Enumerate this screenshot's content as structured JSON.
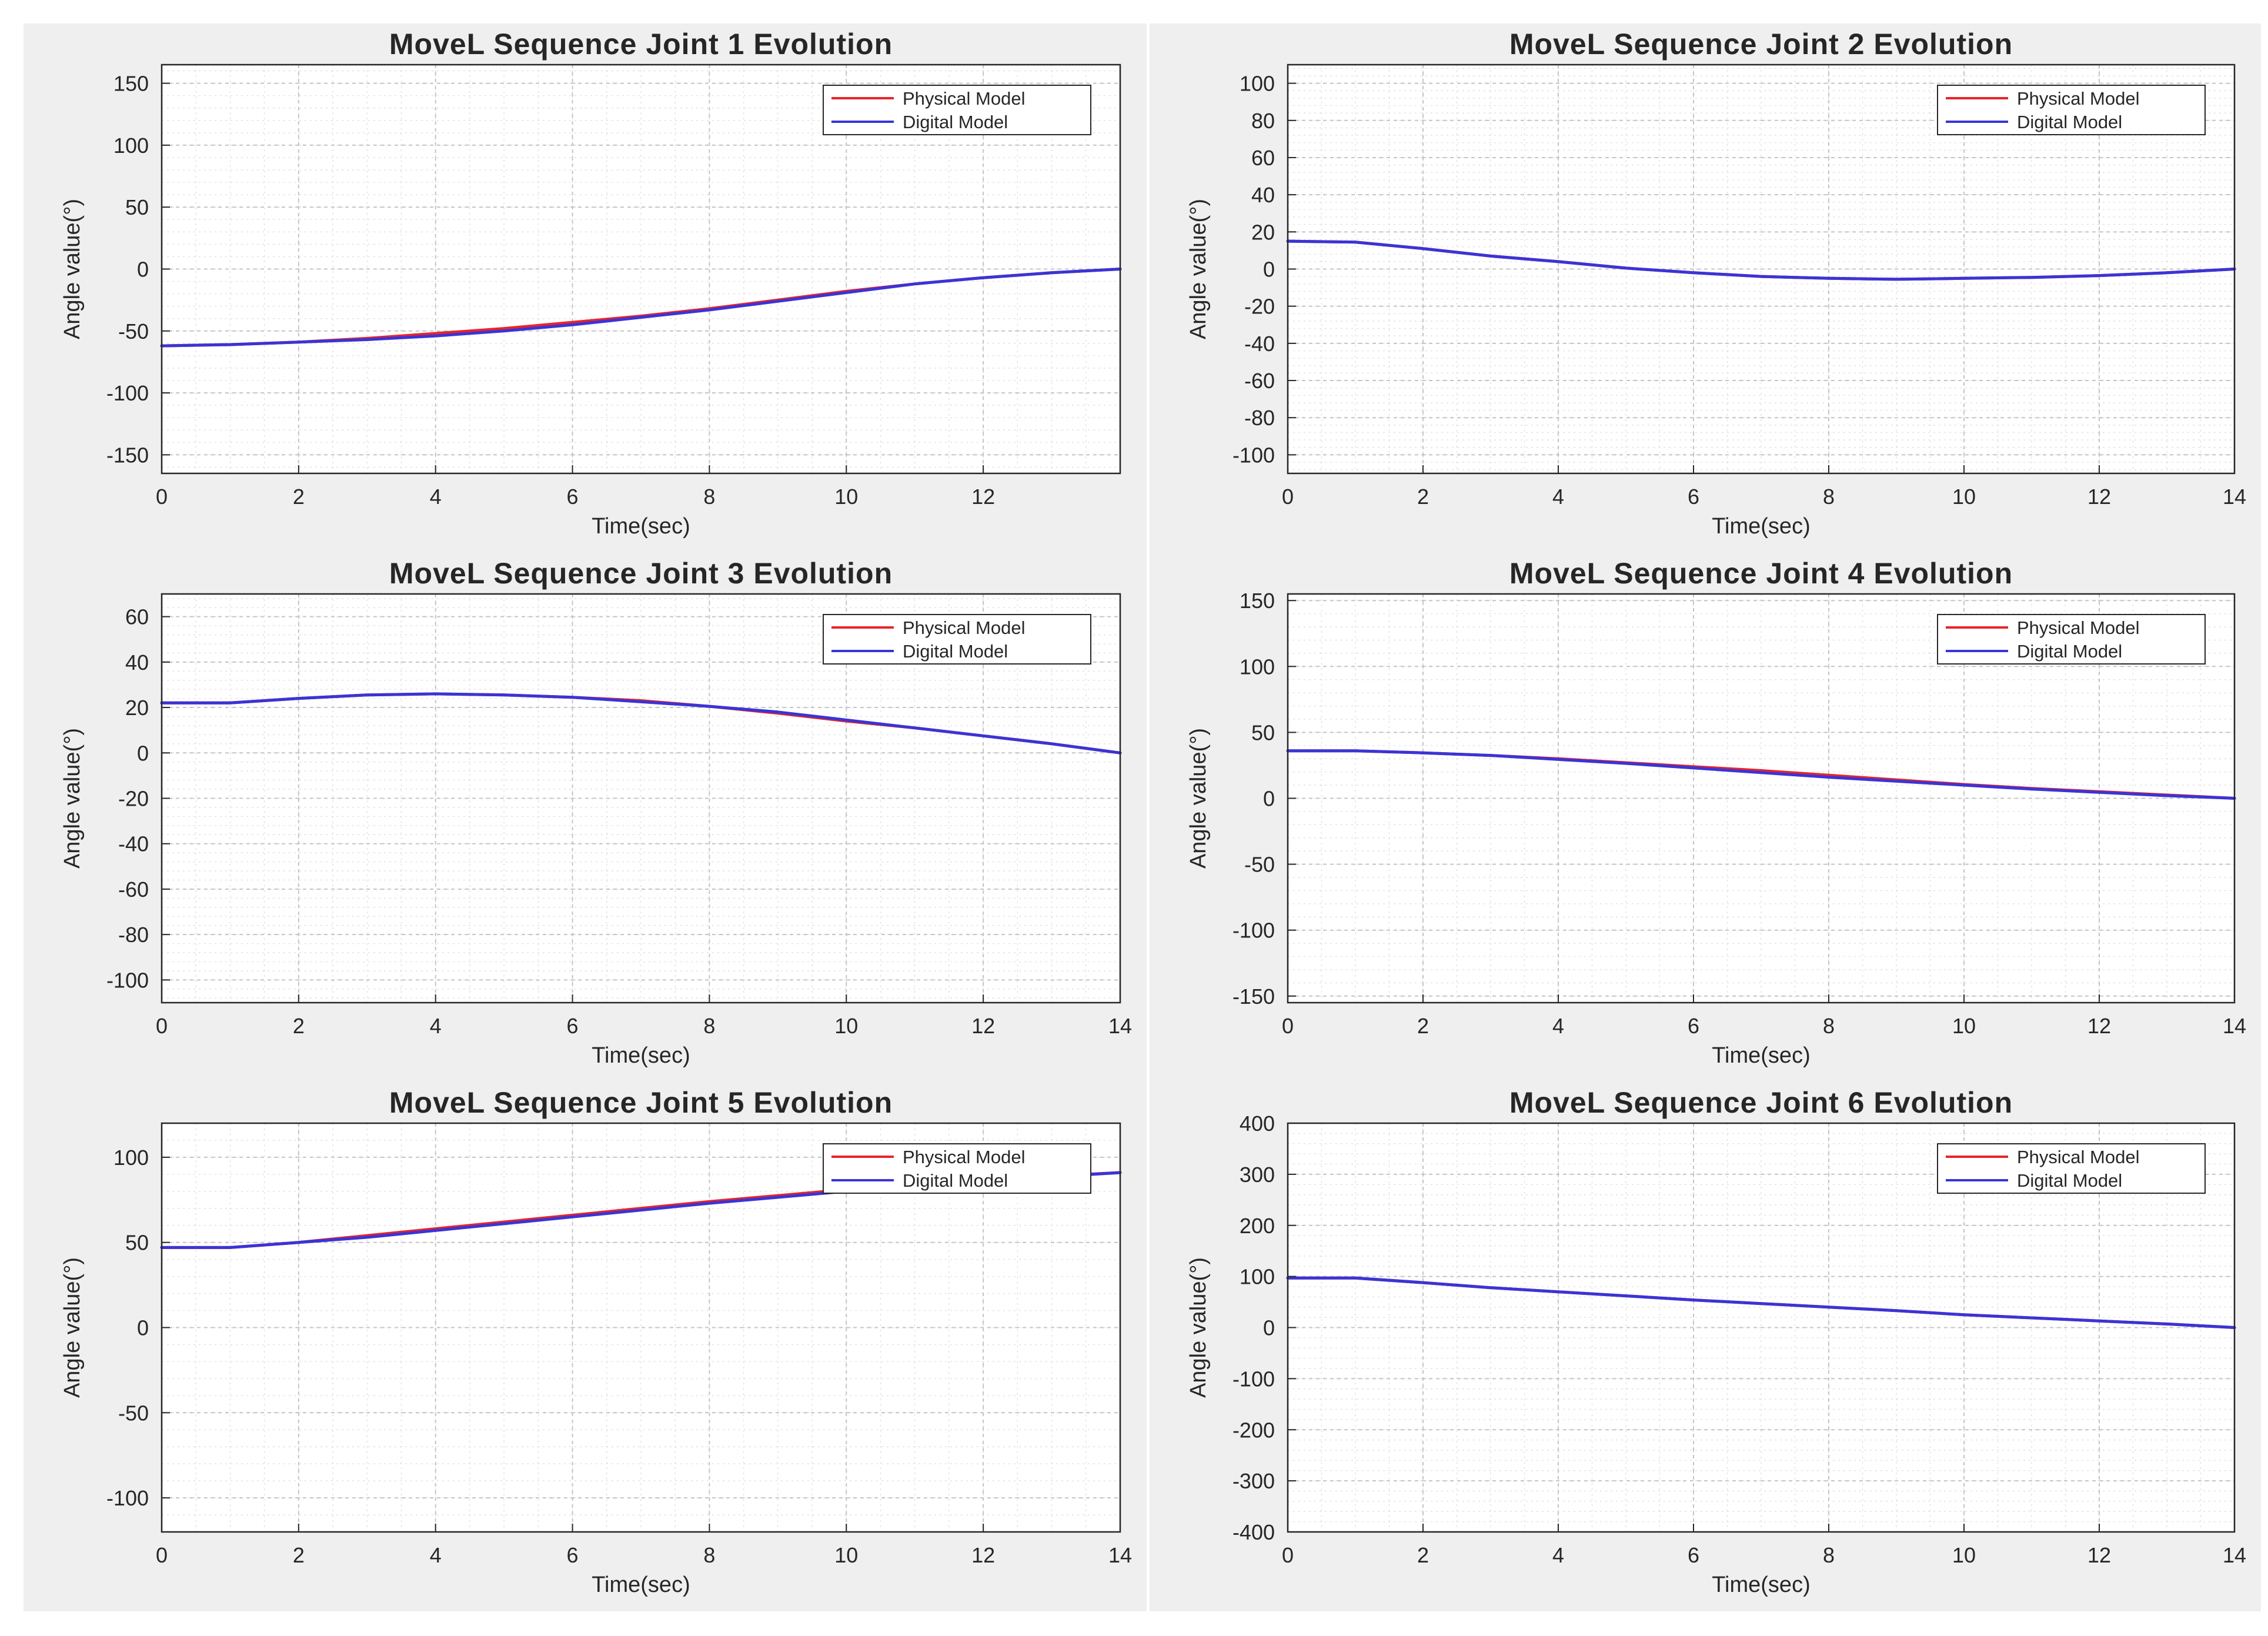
{
  "colors": {
    "physical": "#e8242a",
    "digital": "#3a34d6",
    "panel_bg": "#efefef",
    "axes_bg": "#ffffff",
    "grid": "#d6d6d6",
    "axis": "#262626"
  },
  "legend_placement": "top-right",
  "grid": true,
  "chart_data": [
    {
      "type": "line",
      "title": "MoveL Sequence Joint 1 Evolution",
      "xlabel": "Time(sec)",
      "ylabel": "Angle value(°)",
      "xlim": [
        0,
        14
      ],
      "ylim": [
        -165,
        165
      ],
      "xticks": [
        0,
        2,
        4,
        6,
        8,
        10,
        12
      ],
      "xtick_labels": [
        "0",
        "2",
        "4",
        "6",
        "8",
        "10",
        "12"
      ],
      "yticks": [
        -150,
        -100,
        -50,
        0,
        50,
        100,
        150
      ],
      "ytick_labels": [
        "-150",
        "-100",
        "-50",
        "0",
        "50",
        "100",
        "150"
      ],
      "x": [
        0,
        1,
        2,
        3,
        4,
        5,
        6,
        7,
        8,
        9,
        10,
        11,
        12,
        13,
        14
      ],
      "series": [
        {
          "name": "Physical Model",
          "values": [
            -62,
            -61,
            -59,
            -56,
            -52,
            -48,
            -43,
            -38,
            -32,
            -25,
            -18,
            -12,
            -7,
            -3,
            0
          ]
        },
        {
          "name": "Digital Model",
          "values": [
            -62,
            -61,
            -59,
            -57,
            -54,
            -50,
            -45,
            -39,
            -33,
            -26,
            -19,
            -12,
            -7,
            -3,
            0
          ]
        }
      ]
    },
    {
      "type": "line",
      "title": "MoveL Sequence Joint 2 Evolution",
      "xlabel": "Time(sec)",
      "ylabel": "Angle value(°)",
      "xlim": [
        0,
        14
      ],
      "ylim": [
        -110,
        110
      ],
      "xticks": [
        0,
        2,
        4,
        6,
        8,
        10,
        12,
        14
      ],
      "xtick_labels": [
        "0",
        "2",
        "4",
        "6",
        "8",
        "10",
        "12",
        "14"
      ],
      "yticks": [
        -100,
        -80,
        -60,
        -40,
        -20,
        0,
        20,
        40,
        60,
        80,
        100
      ],
      "ytick_labels": [
        "-100",
        "-80",
        "-60",
        "-40",
        "-20",
        "0",
        "20",
        "40",
        "60",
        "80",
        "100"
      ],
      "x": [
        0,
        1,
        2,
        3,
        4,
        5,
        6,
        7,
        8,
        9,
        10,
        11,
        12,
        13,
        14
      ],
      "series": [
        {
          "name": "Physical Model",
          "values": [
            15,
            14.5,
            11,
            7,
            4,
            0.5,
            -2,
            -4,
            -5,
            -5.5,
            -5,
            -4.5,
            -3.5,
            -2,
            0
          ]
        },
        {
          "name": "Digital Model",
          "values": [
            15,
            14.5,
            11,
            7,
            4,
            0.5,
            -2,
            -4,
            -5,
            -5.5,
            -5,
            -4.5,
            -3.5,
            -2,
            0
          ]
        }
      ]
    },
    {
      "type": "line",
      "title": "MoveL Sequence Joint 3 Evolution",
      "xlabel": "Time(sec)",
      "ylabel": "Angle value(°)",
      "xlim": [
        0,
        14
      ],
      "ylim": [
        -110,
        70
      ],
      "xticks": [
        0,
        2,
        4,
        6,
        8,
        10,
        12,
        14
      ],
      "xtick_labels": [
        "0",
        "2",
        "4",
        "6",
        "8",
        "10",
        "12",
        "14"
      ],
      "yticks": [
        -100,
        -80,
        -60,
        -40,
        -20,
        0,
        20,
        40,
        60
      ],
      "ytick_labels": [
        "-100",
        "-80",
        "-60",
        "-40",
        "-20",
        "0",
        "20",
        "40",
        "60"
      ],
      "x": [
        0,
        1,
        2,
        3,
        4,
        5,
        6,
        7,
        8,
        9,
        10,
        11,
        12,
        13,
        14
      ],
      "series": [
        {
          "name": "Physical Model",
          "values": [
            22,
            22,
            24,
            25.5,
            26,
            25.5,
            24.5,
            23,
            20.5,
            17.5,
            14,
            11,
            7.5,
            4,
            0
          ]
        },
        {
          "name": "Digital Model",
          "values": [
            22,
            22,
            24,
            25.5,
            26,
            25.5,
            24.5,
            22.5,
            20.5,
            18,
            14.5,
            11,
            7.5,
            4,
            0
          ]
        }
      ]
    },
    {
      "type": "line",
      "title": "MoveL Sequence Joint 4 Evolution",
      "xlabel": "Time(sec)",
      "ylabel": "Angle value(°)",
      "xlim": [
        0,
        14
      ],
      "ylim": [
        -155,
        155
      ],
      "xticks": [
        0,
        2,
        4,
        6,
        8,
        10,
        12,
        14
      ],
      "xtick_labels": [
        "0",
        "2",
        "4",
        "6",
        "8",
        "10",
        "12",
        "14"
      ],
      "yticks": [
        -150,
        -100,
        -50,
        0,
        50,
        100,
        150
      ],
      "ytick_labels": [
        "-150",
        "-100",
        "-50",
        "0",
        "50",
        "100",
        "150"
      ],
      "x": [
        0,
        1,
        2,
        3,
        4,
        5,
        6,
        7,
        8,
        9,
        10,
        11,
        12,
        13,
        14
      ],
      "series": [
        {
          "name": "Physical Model",
          "values": [
            36,
            36,
            34.5,
            32.5,
            30,
            27,
            24,
            21,
            17.5,
            14,
            10.5,
            7.5,
            5,
            2.5,
            0
          ]
        },
        {
          "name": "Digital Model",
          "values": [
            36,
            36,
            34.5,
            32.5,
            29.5,
            26.5,
            23,
            19.5,
            16,
            13,
            10,
            7,
            4.5,
            2,
            0
          ]
        }
      ]
    },
    {
      "type": "line",
      "title": "MoveL Sequence Joint 5 Evolution",
      "xlabel": "Time(sec)",
      "ylabel": "Angle value(°)",
      "xlim": [
        0,
        14
      ],
      "ylim": [
        -120,
        120
      ],
      "xticks": [
        0,
        2,
        4,
        6,
        8,
        10,
        12,
        14
      ],
      "xtick_labels": [
        "0",
        "2",
        "4",
        "6",
        "8",
        "10",
        "12",
        "14"
      ],
      "yticks": [
        -100,
        -50,
        0,
        50,
        100
      ],
      "ytick_labels": [
        "-100",
        "-50",
        "0",
        "50",
        "100"
      ],
      "x": [
        0,
        1,
        2,
        3,
        4,
        5,
        6,
        7,
        8,
        9,
        10,
        11,
        12,
        13,
        14
      ],
      "series": [
        {
          "name": "Physical Model",
          "values": [
            47,
            47,
            50,
            54,
            58,
            62,
            66,
            70,
            74,
            77.5,
            81,
            84,
            86.5,
            89,
            91
          ]
        },
        {
          "name": "Digital Model",
          "values": [
            47,
            47,
            50,
            53,
            57,
            61,
            65,
            69,
            73,
            76.5,
            80,
            83,
            86,
            88.5,
            91
          ]
        }
      ]
    },
    {
      "type": "line",
      "title": "MoveL Sequence Joint 6 Evolution",
      "xlabel": "Time(sec)",
      "ylabel": "Angle value(°)",
      "xlim": [
        0,
        14
      ],
      "ylim": [
        -400,
        400
      ],
      "xticks": [
        0,
        2,
        4,
        6,
        8,
        10,
        12,
        14
      ],
      "xtick_labels": [
        "0",
        "2",
        "4",
        "6",
        "8",
        "10",
        "12",
        "14"
      ],
      "yticks": [
        -400,
        -300,
        -200,
        -100,
        0,
        100,
        200,
        300,
        400
      ],
      "ytick_labels": [
        "-400",
        "-300",
        "-200",
        "-100",
        "0",
        "100",
        "200",
        "300",
        "400"
      ],
      "x": [
        0,
        1,
        2,
        3,
        4,
        5,
        6,
        7,
        8,
        9,
        10,
        11,
        12,
        13,
        14
      ],
      "series": [
        {
          "name": "Physical Model",
          "values": [
            97,
            97,
            88,
            78,
            70,
            62,
            54,
            47,
            40,
            33,
            25,
            19,
            13,
            7,
            0
          ]
        },
        {
          "name": "Digital Model",
          "values": [
            97,
            97,
            88,
            78,
            70,
            62,
            54,
            47,
            40,
            33,
            25,
            19,
            13,
            7,
            0
          ]
        }
      ]
    }
  ]
}
